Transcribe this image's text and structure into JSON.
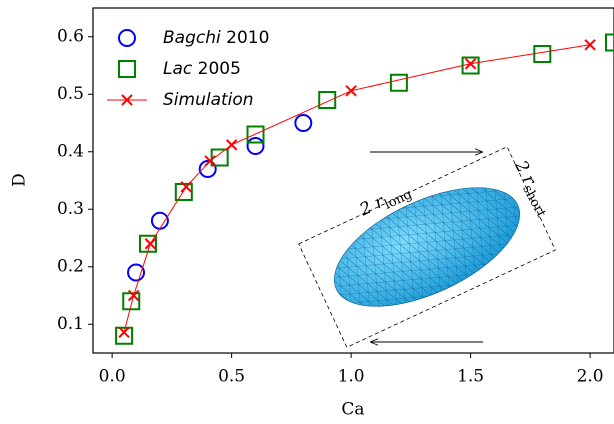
{
  "chart_data": {
    "type": "scatter",
    "x_label": "Ca",
    "y_label": "D",
    "xlim": [
      -0.08,
      2.1
    ],
    "ylim": [
      0.05,
      0.65
    ],
    "xticks": [
      {
        "value": 0,
        "label": "0.0"
      },
      0.5,
      {
        "value": 1,
        "label": "1.0"
      },
      1.5,
      {
        "value": 2,
        "label": "2.0"
      }
    ],
    "yticks": [
      0.1,
      0.2,
      0.3,
      0.4,
      0.5,
      0.6
    ],
    "legend": "upper left",
    "series": [
      {
        "name": "Bagchi 2010",
        "color": "#0000ff",
        "marker": "circle",
        "x": [
          0.1,
          0.2,
          0.4,
          0.6,
          0.8
        ],
        "values": [
          0.19,
          0.28,
          0.37,
          0.41,
          0.45
        ]
      },
      {
        "name": "Lac 2005",
        "color": "#008000",
        "marker": "square",
        "x": [
          0.05,
          0.08,
          0.15,
          0.3,
          0.45,
          0.6,
          0.9,
          1.2,
          1.5,
          1.8,
          2.1
        ],
        "values": [
          0.08,
          0.14,
          0.24,
          0.33,
          0.39,
          0.43,
          0.49,
          0.52,
          0.55,
          0.57,
          0.59
        ]
      },
      {
        "name": "Simulation",
        "color": "#ff0000",
        "marker": "x",
        "line": true,
        "x": [
          0.05,
          0.09,
          0.16,
          0.31,
          0.41,
          0.5,
          1.0,
          1.5,
          2.0
        ],
        "values": [
          0.086,
          0.15,
          0.24,
          0.339,
          0.384,
          0.412,
          0.506,
          0.553,
          0.586
        ]
      }
    ],
    "annotations": [
      {
        "text": "2 r",
        "sub": "long"
      },
      {
        "text": "2 r",
        "sub": "short"
      }
    ]
  }
}
